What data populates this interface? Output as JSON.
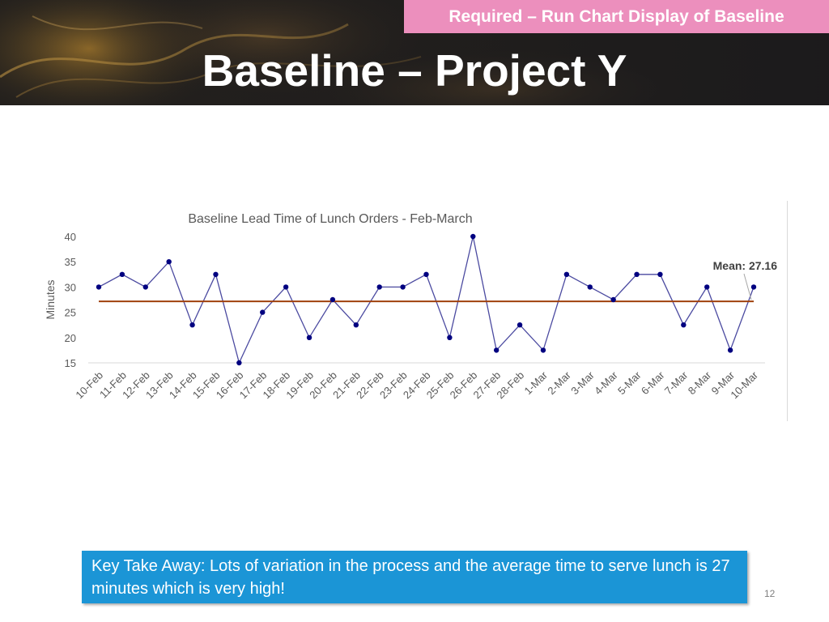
{
  "banner": "Required – Run Chart Display of Baseline",
  "slide_title": "Baseline – Project Y",
  "takeaway": "Key Take Away: Lots of variation in the process and the average time to serve lunch is 27 minutes which is very high!",
  "page_number": "12",
  "colors": {
    "banner": "#ec8fbd",
    "takeaway_bg": "#1b95d6",
    "series_line": "#4b4aa0",
    "series_marker": "#000080",
    "mean_line": "#a0410d"
  },
  "chart_data": {
    "type": "line",
    "title": "Baseline Lead Time of Lunch Orders - Feb-March",
    "xlabel": "",
    "ylabel": "Minutes",
    "ylim": [
      15,
      40
    ],
    "yticks": [
      15,
      20,
      25,
      30,
      35,
      40
    ],
    "grid": false,
    "categories": [
      "10-Feb",
      "11-Feb",
      "12-Feb",
      "13-Feb",
      "14-Feb",
      "15-Feb",
      "16-Feb",
      "17-Feb",
      "18-Feb",
      "19-Feb",
      "20-Feb",
      "21-Feb",
      "22-Feb",
      "23-Feb",
      "24-Feb",
      "25-Feb",
      "26-Feb",
      "27-Feb",
      "28-Feb",
      "1-Mar",
      "2-Mar",
      "3-Mar",
      "4-Mar",
      "5-Mar",
      "6-Mar",
      "7-Mar",
      "8-Mar",
      "9-Mar",
      "10-Mar"
    ],
    "series": [
      {
        "values": [
          30,
          32.5,
          30,
          35,
          22.5,
          32.5,
          15,
          25,
          30,
          20,
          27.5,
          22.5,
          30,
          30,
          32.5,
          20,
          40,
          17.5,
          22.5,
          17.5,
          32.5,
          30,
          27.5,
          32.5,
          32.5,
          22.5,
          30,
          17.5,
          30
        ]
      }
    ],
    "mean": 27.16,
    "mean_label": "Mean: 27.16"
  }
}
